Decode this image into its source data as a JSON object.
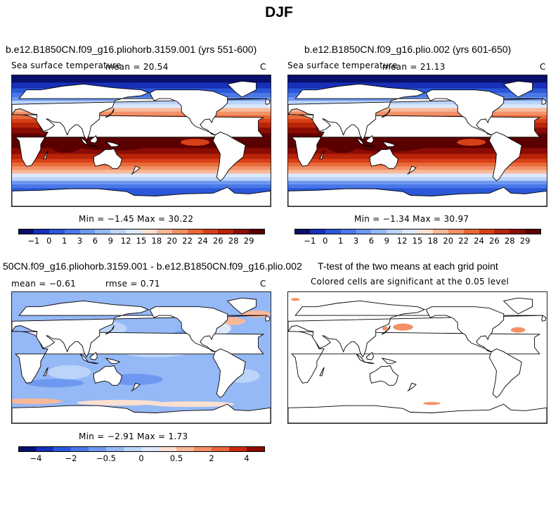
{
  "figure": {
    "title": "DJF"
  },
  "panels": {
    "p1": {
      "title": "b.e12.B1850CN.f09_g16.pliohorb.3159.001 (yrs 551-600)",
      "left_label": "Sea surface temperature",
      "mean_label": "mean =  20.54",
      "unit": "C",
      "minmax": "Min =  −1.45 Max =  30.22",
      "colorbar_ticks": [
        "−1",
        "0",
        "1",
        "3",
        "6",
        "9",
        "12",
        "15",
        "18",
        "20",
        "22",
        "24",
        "26",
        "28",
        "29"
      ]
    },
    "p2": {
      "title": "b.e12.B1850CN.f09_g16.plio.002 (yrs 601-650)",
      "left_label": "Sea surface temperature",
      "mean_label": "mean =  21.13",
      "unit": "C",
      "minmax": "Min =  −1.34 Max =  30.97",
      "colorbar_ticks": [
        "−1",
        "0",
        "1",
        "3",
        "6",
        "9",
        "12",
        "15",
        "18",
        "20",
        "22",
        "24",
        "26",
        "28",
        "29"
      ]
    },
    "p3": {
      "title": "50CN.f09_g16.pliohorb.3159.001 - b.e12.B1850CN.f09_g16.plio.002",
      "left_label": "mean =  −0.61",
      "rmse_label": "rmse =   0.71",
      "unit": "C",
      "minmax": "Min =  −2.91 Max =   1.73",
      "colorbar_ticks": [
        "−4",
        "",
        "−2",
        "",
        "−0.5",
        "",
        "0",
        "",
        "0.5",
        "",
        "2",
        "",
        "4",
        ""
      ]
    },
    "p4": {
      "title": "T-test of the two means at each grid point",
      "subtitle": "Colored cells are significant at the 0.05 level"
    }
  },
  "colors": {
    "sst_palette": [
      "#08106b",
      "#1830b8",
      "#2a58d8",
      "#4a78e8",
      "#6e98f0",
      "#95b8f6",
      "#bcd4fa",
      "#dce8fc",
      "#fce0d0",
      "#f8b898",
      "#f29068",
      "#e86838",
      "#d84018",
      "#b82408",
      "#8a0c04",
      "#5a0000"
    ],
    "diff_palette": [
      "#08106b",
      "#1830b8",
      "#2a58d8",
      "#4a78e8",
      "#6e98f0",
      "#95b8f6",
      "#bcd4fa",
      "#dce8fc",
      "#fce0d0",
      "#f8b898",
      "#f29068",
      "#e86838",
      "#c82a10",
      "#8a0c04"
    ],
    "land": "#ffffff",
    "coast": "#000000"
  }
}
